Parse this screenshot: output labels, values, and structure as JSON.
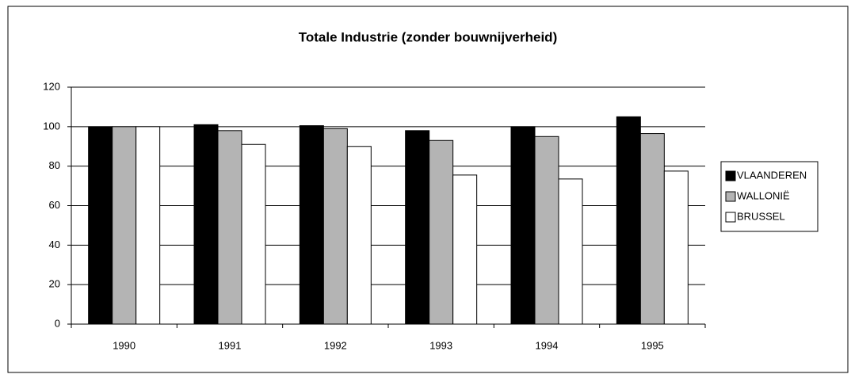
{
  "chart_data": {
    "type": "bar",
    "title": "Totale Industrie (zonder bouwnijverheid)",
    "categories": [
      "1990",
      "1991",
      "1992",
      "1993",
      "1994",
      "1995"
    ],
    "series": [
      {
        "name": "VLAANDEREN",
        "color": "#000000",
        "values": [
          100,
          101,
          100.5,
          98,
          100,
          105
        ]
      },
      {
        "name": "WALLONIË",
        "color": "#b4b4b4",
        "values": [
          100,
          98,
          99,
          93,
          95,
          96.5
        ]
      },
      {
        "name": "BRUSSEL",
        "color": "#ffffff",
        "values": [
          100,
          91,
          90,
          75.5,
          73.5,
          77.5
        ]
      }
    ],
    "ylim": [
      0,
      120
    ],
    "yticks": [
      0,
      20,
      40,
      60,
      80,
      100,
      120
    ],
    "grid": true,
    "legend": "right"
  }
}
